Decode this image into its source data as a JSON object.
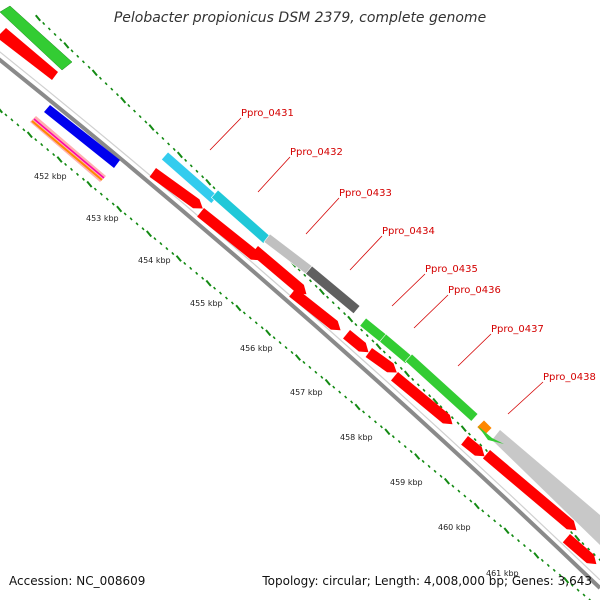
{
  "title": "Pelobacter propionicus DSM 2379, complete genome",
  "footer": {
    "accession": "Accession: NC_008609",
    "summary": "Topology: circular; Length: 4,008,000 bp; Genes: 3,643"
  },
  "kbp_labels": [
    "452 kbp",
    "453 kbp",
    "454 kbp",
    "455 kbp",
    "456 kbp",
    "457 kbp",
    "458 kbp",
    "459 kbp",
    "460 kbp",
    "461 kbp"
  ],
  "genes": [
    {
      "name": "Ppro_0431",
      "color": "#33ccee"
    },
    {
      "name": "Ppro_0432",
      "color": "#20c8d8"
    },
    {
      "name": "Ppro_0433",
      "color": "#c0c0c0"
    },
    {
      "name": "Ppro_0434",
      "color": "#606060"
    },
    {
      "name": "Ppro_0435",
      "color": "#33cc33"
    },
    {
      "name": "Ppro_0436",
      "color": "#33cc33"
    },
    {
      "name": "Ppro_0437",
      "color": "#33cc33"
    },
    {
      "name": "Ppro_0438",
      "color": "#ff8800"
    }
  ],
  "colors": {
    "backbone": "#8a8a8a",
    "cds_red": "#ff0000",
    "tick_green": "#138a13",
    "label_red": "#d40000"
  }
}
